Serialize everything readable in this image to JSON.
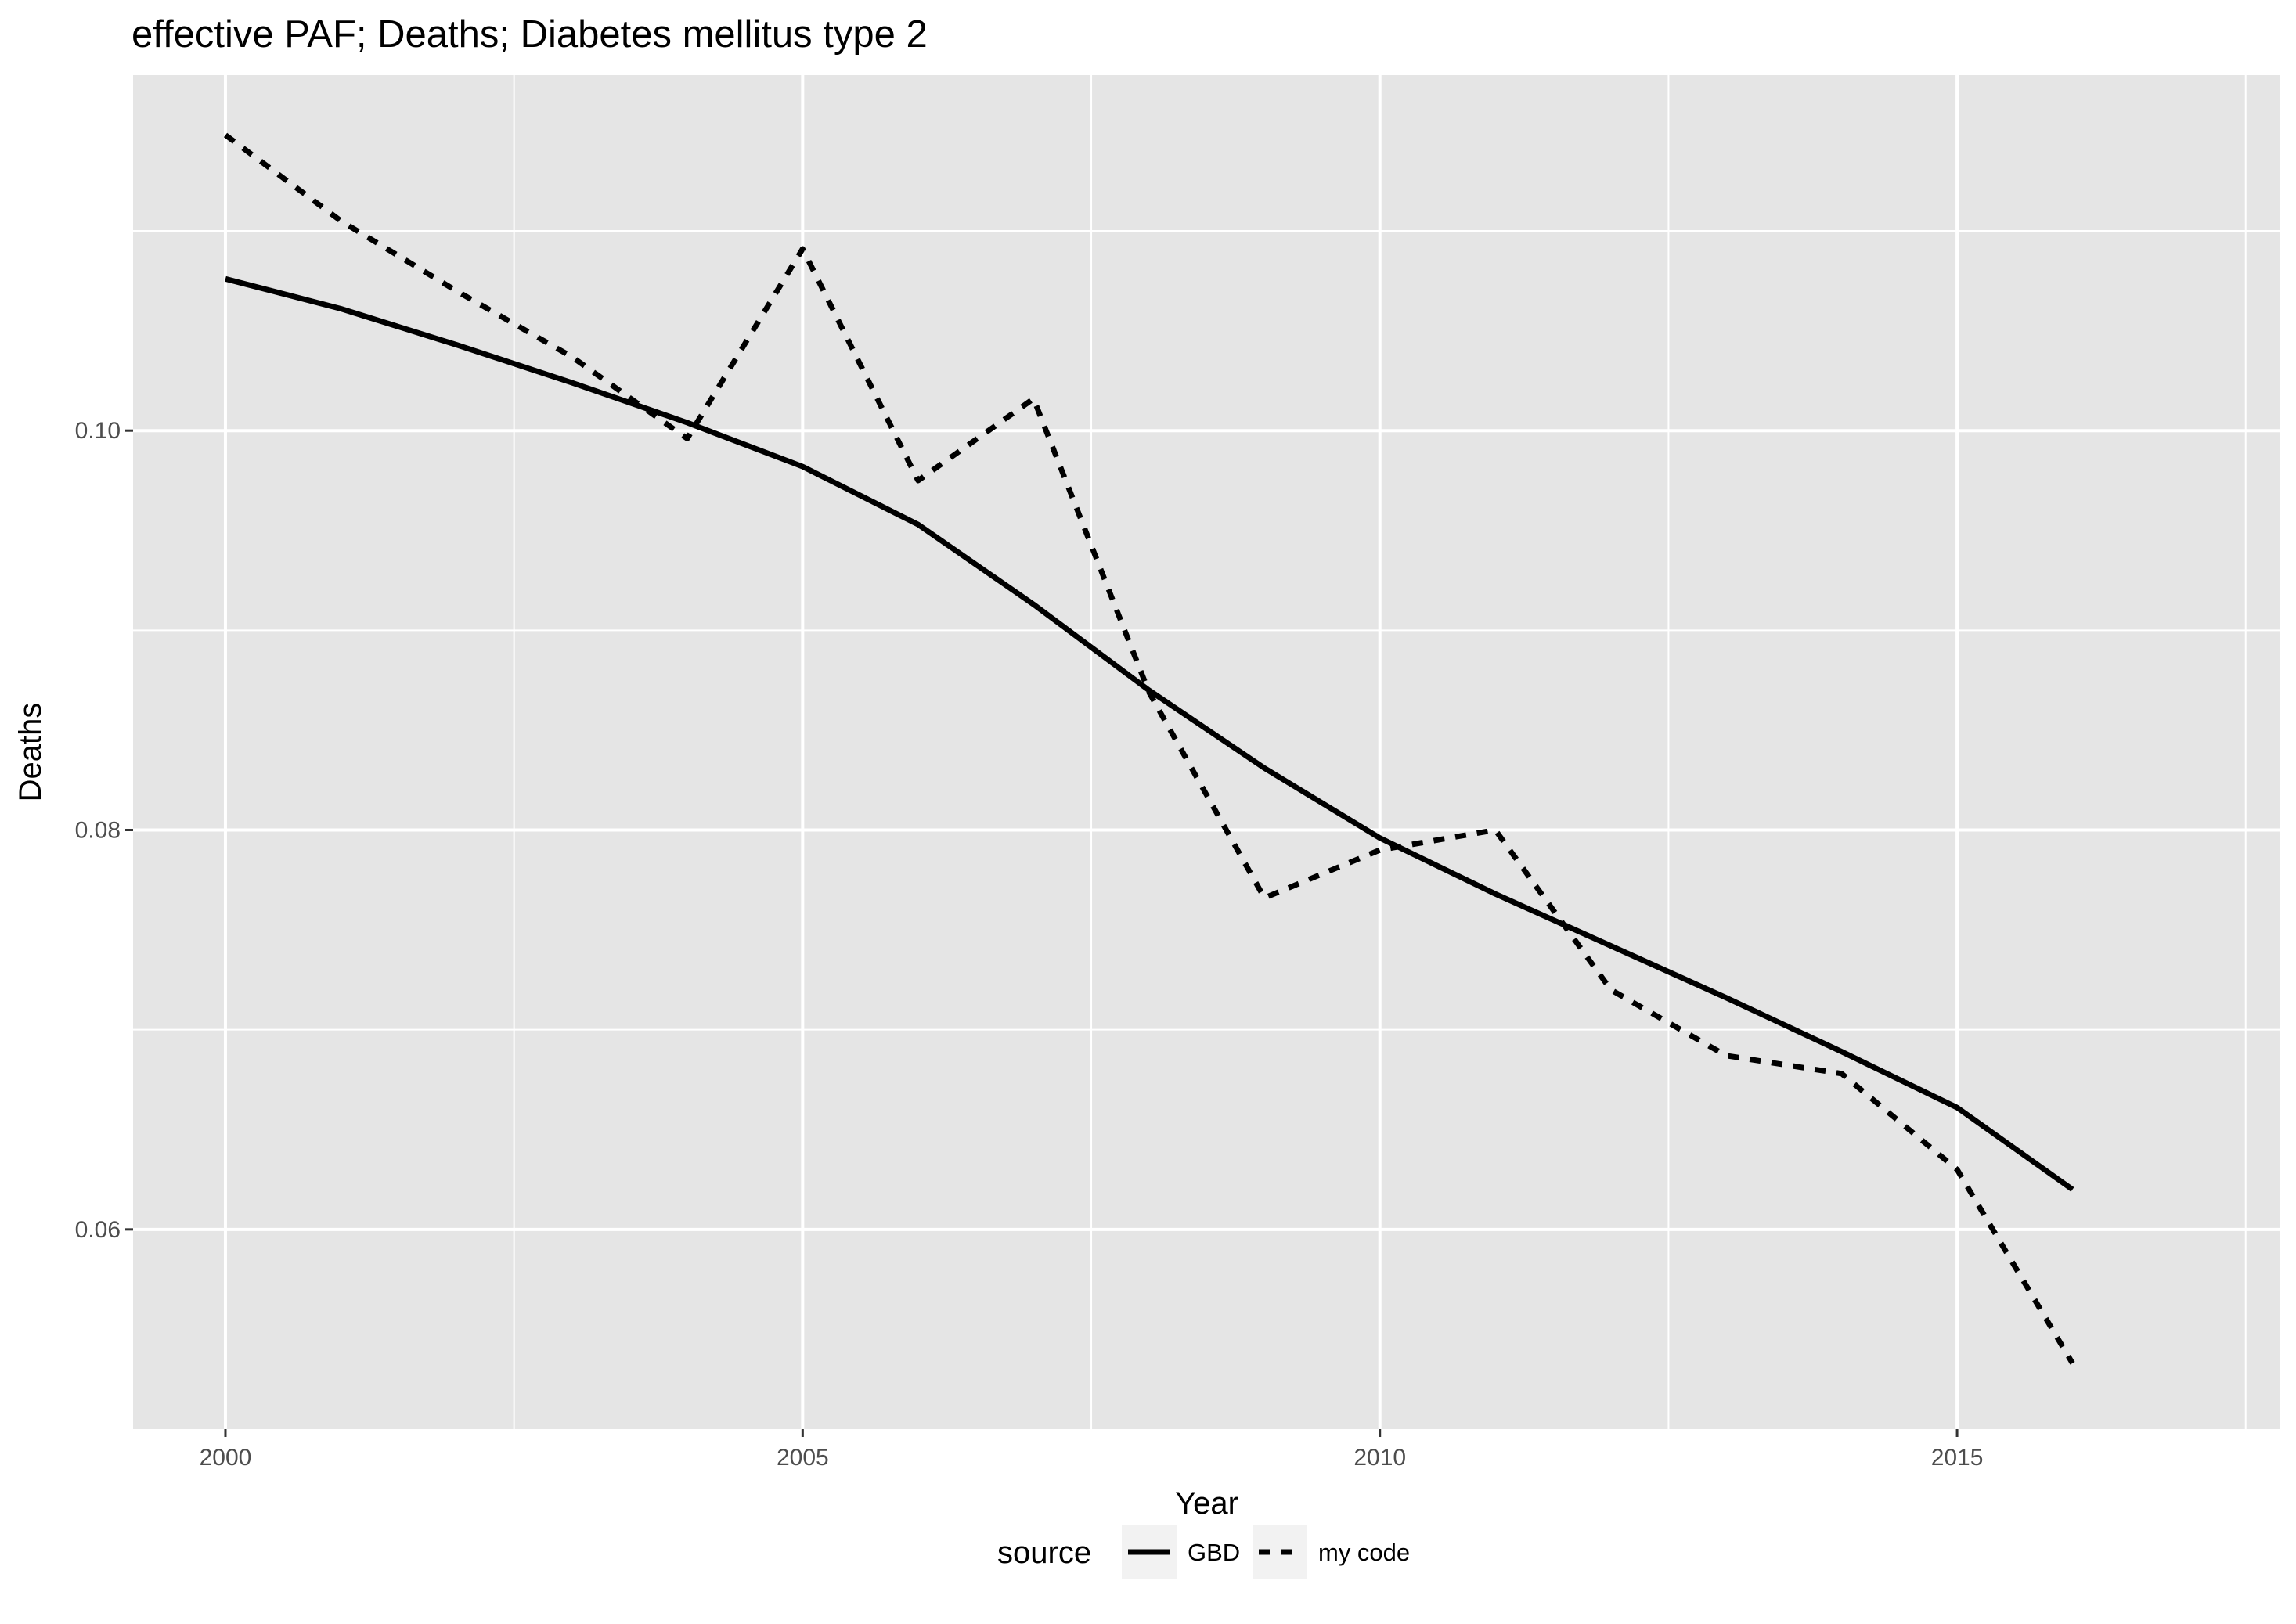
{
  "chart_data": {
    "type": "line",
    "title": "effective PAF; Deaths; Diabetes mellitus type 2",
    "xlabel": "Year",
    "ylabel": "Deaths",
    "xlim": [
      1999.2,
      2017.8
    ],
    "ylim": [
      0.05,
      0.1178
    ],
    "x_ticks": [
      2000,
      2005,
      2010,
      2015
    ],
    "x_tick_labels": [
      "2000",
      "2005",
      "2010",
      "2015"
    ],
    "y_ticks": [
      0.06,
      0.08,
      0.1
    ],
    "y_tick_labels": [
      "0.06",
      "0.08",
      "0.10"
    ],
    "grid": true,
    "legend": {
      "title": "source",
      "position": "bottom",
      "entries": [
        {
          "label": "GBD",
          "linetype": "solid"
        },
        {
          "label": "my code",
          "linetype": "dashed"
        }
      ]
    },
    "x": [
      2000,
      2001,
      2002,
      2003,
      2004,
      2005,
      2006,
      2007,
      2008,
      2009,
      2010,
      2011,
      2012,
      2013,
      2014,
      2015,
      2016
    ],
    "series": [
      {
        "name": "GBD",
        "linetype": "solid",
        "color": "#000000",
        "values": [
          0.1076,
          0.1061,
          0.1043,
          0.1024,
          0.1004,
          0.0982,
          0.0953,
          0.0913,
          0.087,
          0.0831,
          0.0796,
          0.0768,
          0.0742,
          0.0716,
          0.0689,
          0.0661,
          0.062
        ]
      },
      {
        "name": "my code",
        "linetype": "dashed",
        "color": "#000000",
        "values": [
          0.1148,
          0.1105,
          0.107,
          0.1037,
          0.0996,
          0.1091,
          0.0975,
          0.1016,
          0.0869,
          0.0766,
          0.079,
          0.08,
          0.072,
          0.0687,
          0.0678,
          0.063,
          0.0533
        ]
      }
    ]
  },
  "colors": {
    "panel_background": "#e5e5e5",
    "gridline": "#ffffff",
    "line": "#000000",
    "tick_text": "#4d4d4d",
    "legend_key_background": "#f2f2f2"
  }
}
